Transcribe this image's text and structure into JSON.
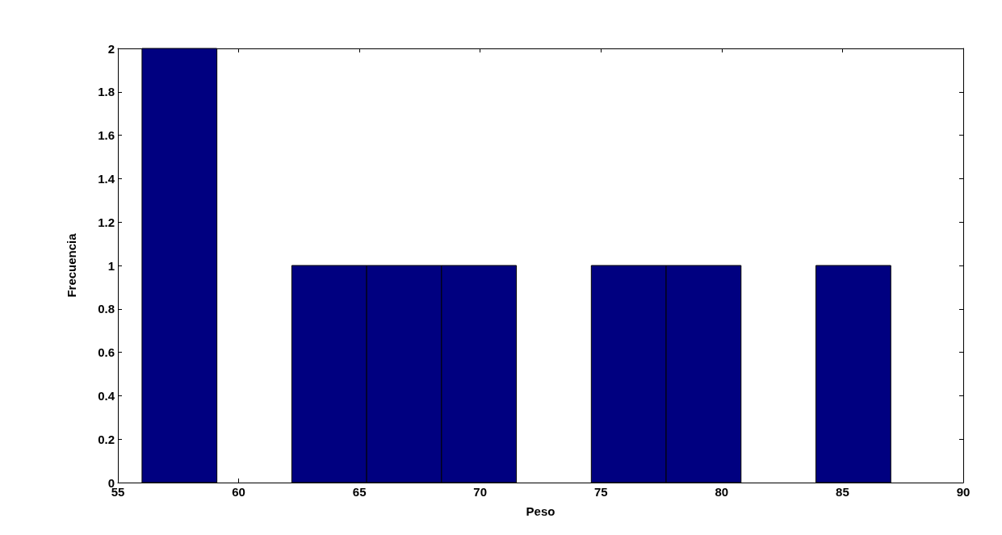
{
  "chart_data": {
    "type": "histogram",
    "xlabel": "Peso",
    "ylabel": "Frecuencia",
    "bins": [
      56,
      59.1,
      62.2,
      65.3,
      68.4,
      71.5,
      74.6,
      77.7,
      80.8,
      83.9,
      87
    ],
    "values": [
      2,
      0,
      1,
      1,
      1,
      0,
      1,
      1,
      0,
      1
    ],
    "color": "#000080",
    "xlim": [
      55,
      90
    ],
    "xticks": [
      55,
      60,
      65,
      70,
      75,
      80,
      85,
      90
    ],
    "ylim": [
      0,
      2
    ],
    "yticks": [
      0,
      0.2,
      0.4,
      0.6,
      0.8,
      1,
      1.2,
      1.4,
      1.6,
      1.8,
      2
    ],
    "grid": false
  }
}
